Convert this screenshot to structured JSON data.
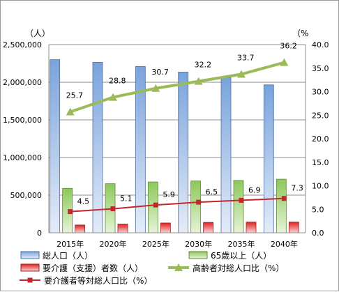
{
  "chart_data": {
    "type": "bar",
    "categories": [
      "2015年",
      "2020年",
      "2025年",
      "2030年",
      "2035年",
      "2040年"
    ],
    "series": [
      {
        "name": "総人口（人）",
        "kind": "bar",
        "axis": "left",
        "color": "#8eb4e3",
        "values": [
          2300000,
          2265000,
          2210000,
          2135000,
          2060000,
          1965000
        ]
      },
      {
        "name": "65歳以上（人）",
        "kind": "bar",
        "axis": "left",
        "color": "#9bd06a",
        "values": [
          590000,
          652000,
          675000,
          688000,
          695000,
          712000
        ]
      },
      {
        "name": "要介護（支援）者数（人）",
        "kind": "bar",
        "axis": "left",
        "color": "#ee3b3b",
        "values": [
          103000,
          115000,
          130000,
          138000,
          142000,
          142000
        ]
      },
      {
        "name": "高齢者対総人口比（%）",
        "kind": "line",
        "axis": "right",
        "color": "#9bbb59",
        "values": [
          25.7,
          28.8,
          30.7,
          32.2,
          33.7,
          36.2
        ],
        "labels": [
          "25.7",
          "28.8",
          "30.7",
          "32.2",
          "33.7",
          "36.2"
        ]
      },
      {
        "name": "要介護者等対総人口比（%）",
        "kind": "line",
        "axis": "right",
        "color": "#c0282d",
        "values": [
          4.5,
          5.1,
          5.9,
          6.5,
          6.9,
          7.3
        ],
        "labels": [
          "4.5",
          "5.1",
          "5.9",
          "6.5",
          "6.9",
          "7.3"
        ]
      }
    ],
    "y_left": {
      "unit": "（人）",
      "ylim": [
        0,
        2500000
      ],
      "ticks": [
        0,
        500000,
        1000000,
        1500000,
        2000000,
        2500000
      ],
      "tick_labels": [
        "0",
        "500,000",
        "1,000,000",
        "1,500,000",
        "2,000,000",
        "2,500,000"
      ]
    },
    "y_right": {
      "unit": "（%",
      "ylim": [
        0,
        40
      ],
      "ticks": [
        0,
        5,
        10,
        15,
        20,
        25,
        30,
        35,
        40
      ],
      "tick_labels": [
        "0.0",
        "5.0",
        "10.0",
        "15.0",
        "20.0",
        "25.0",
        "30.0",
        "35.0",
        "40.0"
      ]
    },
    "grid": true,
    "legend_position": "bottom"
  }
}
